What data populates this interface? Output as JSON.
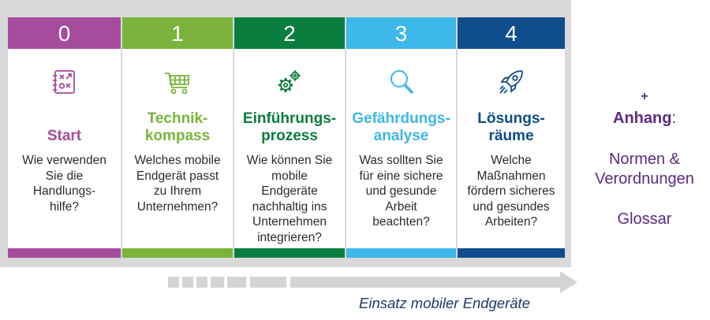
{
  "steps": [
    {
      "number": "0",
      "title": "Start",
      "description": "Wie verwenden\nSie die\nHandlungs-\nhilfe?",
      "color": "#a64c9c",
      "icon": "checklist-icon"
    },
    {
      "number": "1",
      "title": "Technik-\nkompass",
      "description": "Welches mobile\nEndgerät passt\nzu Ihrem\nUnternehmen?",
      "color": "#7ab43c",
      "icon": "shopping-cart-icon"
    },
    {
      "number": "2",
      "title": "Einführungs-\nprozess",
      "description": "Wie können Sie\nmobile\nEndgeräte\nnachhaltig ins\nUnternehmen\nintegrieren?",
      "color": "#0a7e3e",
      "icon": "gears-icon"
    },
    {
      "number": "3",
      "title": "Gefährdungs-\nanalyse",
      "description": "Was sollten Sie\nfür eine sichere\nund gesunde\nArbeit\nbeachten?",
      "color": "#3db8e8",
      "icon": "magnifier-icon"
    },
    {
      "number": "4",
      "title": "Lösungs-\nräume",
      "description": "Welche\nMaßnahmen\nfördern sicheres\nund gesundes\nArbeiten?",
      "color": "#0f4d8c",
      "icon": "rocket-icon"
    }
  ],
  "annex": {
    "plus": "+",
    "label": "Anhang",
    "colon": ":",
    "item1": "Normen &\nVerordnungen",
    "item2": "Glossar"
  },
  "caption": "Einsatz mobiler Endgeräte"
}
